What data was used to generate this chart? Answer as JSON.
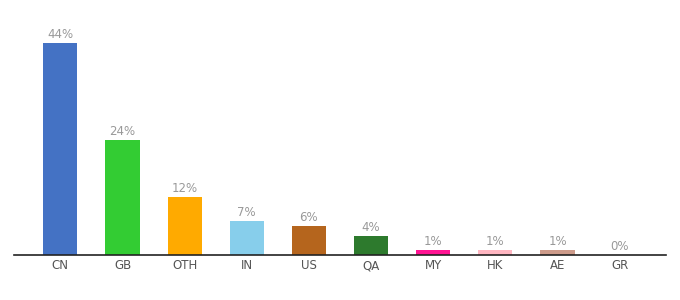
{
  "categories": [
    "CN",
    "GB",
    "OTH",
    "IN",
    "US",
    "QA",
    "MY",
    "HK",
    "AE",
    "GR"
  ],
  "values": [
    44,
    24,
    12,
    7,
    6,
    4,
    1,
    1,
    1,
    0
  ],
  "bar_colors": [
    "#4472c4",
    "#33cc33",
    "#ffaa00",
    "#87ceeb",
    "#b5651d",
    "#2d7a2d",
    "#ff1493",
    "#ffb6c1",
    "#cd9b8a",
    "#e0e0e0"
  ],
  "labels": [
    "44%",
    "24%",
    "12%",
    "7%",
    "6%",
    "4%",
    "1%",
    "1%",
    "1%",
    "0%"
  ],
  "ylim": [
    0,
    48
  ],
  "background_color": "#ffffff",
  "label_color": "#999999",
  "label_fontsize": 8.5,
  "xtick_fontsize": 8.5,
  "xtick_color": "#555555",
  "bar_width": 0.55,
  "bottom_spine_color": "#222222"
}
